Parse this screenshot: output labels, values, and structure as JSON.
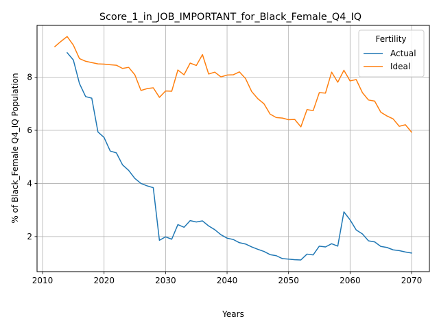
{
  "chart_data": {
    "type": "line",
    "title": "Score_1_in_JOB_IMPORTANT_for_Black_Female_Q4_IQ",
    "xlabel": "Years",
    "ylabel": "% of Black_Female Q4_IQ Population",
    "xlim": [
      2009.1,
      2072.9
    ],
    "ylim": [
      0.68,
      9.95
    ],
    "xticks": [
      2010,
      2020,
      2030,
      2040,
      2050,
      2060,
      2070
    ],
    "yticks": [
      2,
      4,
      6,
      8
    ],
    "grid": true,
    "legend": {
      "title": "Fertility",
      "position": "top-right"
    },
    "series": [
      {
        "name": "Actual",
        "color": "#1f77b4",
        "x": [
          2014,
          2015,
          2016,
          2017,
          2018,
          2019,
          2020,
          2021,
          2022,
          2023,
          2024,
          2025,
          2026,
          2027,
          2028,
          2029,
          2030,
          2031,
          2032,
          2033,
          2034,
          2035,
          2036,
          2037,
          2038,
          2039,
          2040,
          2041,
          2042,
          2043,
          2044,
          2045,
          2046,
          2047,
          2048,
          2049,
          2050,
          2051,
          2052,
          2053,
          2054,
          2055,
          2056,
          2057,
          2058,
          2059,
          2060,
          2061,
          2062,
          2063,
          2064,
          2065,
          2066,
          2067,
          2068,
          2069,
          2070
        ],
        "y": [
          8.92,
          8.65,
          7.76,
          7.27,
          7.21,
          5.94,
          5.73,
          5.22,
          5.15,
          4.7,
          4.49,
          4.19,
          4.0,
          3.91,
          3.84,
          1.86,
          1.99,
          1.9,
          2.45,
          2.35,
          2.6,
          2.55,
          2.59,
          2.4,
          2.26,
          2.07,
          1.94,
          1.89,
          1.77,
          1.72,
          1.61,
          1.52,
          1.44,
          1.32,
          1.28,
          1.17,
          1.15,
          1.13,
          1.12,
          1.34,
          1.31,
          1.64,
          1.61,
          1.73,
          1.64,
          2.93,
          2.63,
          2.25,
          2.1,
          1.84,
          1.8,
          1.63,
          1.59,
          1.5,
          1.47,
          1.42,
          1.38
        ]
      },
      {
        "name": "Ideal",
        "color": "#ff7f0e",
        "x": [
          2012,
          2013,
          2014,
          2015,
          2016,
          2017,
          2018,
          2019,
          2020,
          2021,
          2022,
          2023,
          2024,
          2025,
          2026,
          2027,
          2028,
          2029,
          2030,
          2031,
          2032,
          2033,
          2034,
          2035,
          2036,
          2037,
          2038,
          2039,
          2040,
          2041,
          2042,
          2043,
          2044,
          2045,
          2046,
          2047,
          2048,
          2049,
          2050,
          2051,
          2052,
          2053,
          2054,
          2055,
          2056,
          2057,
          2058,
          2059,
          2060,
          2061,
          2062,
          2063,
          2064,
          2065,
          2066,
          2067,
          2068,
          2069,
          2070
        ],
        "y": [
          9.15,
          9.35,
          9.53,
          9.21,
          8.7,
          8.6,
          8.55,
          8.5,
          8.49,
          8.47,
          8.45,
          8.33,
          8.37,
          8.09,
          7.5,
          7.57,
          7.6,
          7.24,
          7.48,
          7.47,
          8.27,
          8.09,
          8.53,
          8.44,
          8.85,
          8.12,
          8.19,
          8.01,
          8.08,
          8.09,
          8.2,
          7.95,
          7.46,
          7.19,
          7.0,
          6.61,
          6.48,
          6.46,
          6.4,
          6.41,
          6.13,
          6.78,
          6.74,
          7.42,
          7.4,
          8.19,
          7.81,
          8.26,
          7.86,
          7.91,
          7.42,
          7.14,
          7.1,
          6.68,
          6.54,
          6.43,
          6.15,
          6.21,
          5.93
        ]
      }
    ]
  }
}
